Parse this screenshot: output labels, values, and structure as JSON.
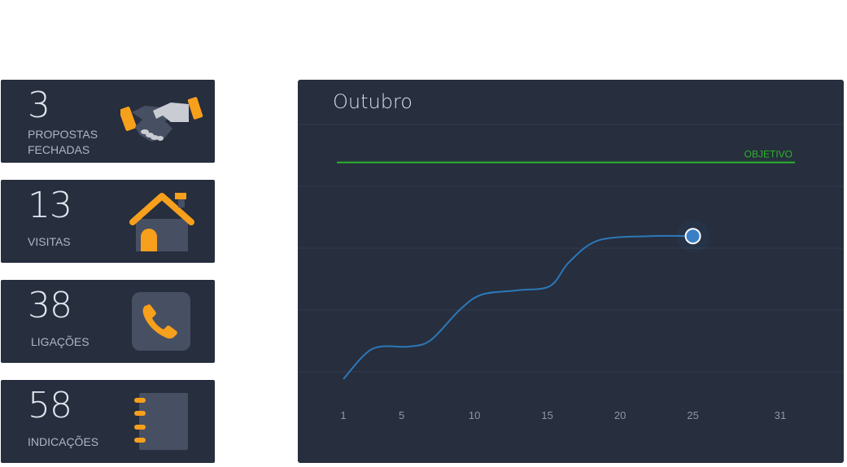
{
  "cards": [
    {
      "value": "3",
      "label_line1": "PROPOSTAS",
      "label_line2": "FECHADAS",
      "icon": "handshake-icon"
    },
    {
      "value": "13",
      "label": "VISITAS",
      "icon": "house-icon"
    },
    {
      "value": "38",
      "label": "LIGAÇÕES",
      "icon": "phone-icon"
    },
    {
      "value": "58",
      "label": "INDICAÇÕES",
      "icon": "notebook-icon"
    }
  ],
  "colors": {
    "panel": "#272e3e",
    "accent_orange": "#f7a01c",
    "goal_green": "#2bb52b",
    "line_blue": "#2b78b8"
  },
  "chart_data": {
    "type": "line",
    "title": "Outubro",
    "x_ticks": [
      "1",
      "5",
      "10",
      "15",
      "20",
      "25",
      "31"
    ],
    "xlim": [
      1,
      31
    ],
    "goal_label": "OBJETIVO",
    "goal_value": 100,
    "ylim": [
      0,
      110
    ],
    "grid": true,
    "series": [
      {
        "points": [
          {
            "x": 1,
            "y": 0
          },
          {
            "x": 3,
            "y": 14
          },
          {
            "x": 5.5,
            "y": 15
          },
          {
            "x": 7,
            "y": 18
          },
          {
            "x": 9,
            "y": 32
          },
          {
            "x": 10.5,
            "y": 39
          },
          {
            "x": 13,
            "y": 41
          },
          {
            "x": 15.2,
            "y": 43
          },
          {
            "x": 16.5,
            "y": 54
          },
          {
            "x": 18.5,
            "y": 64
          },
          {
            "x": 22,
            "y": 66
          },
          {
            "x": 25,
            "y": 66
          }
        ],
        "highlight_x": 25
      }
    ]
  }
}
